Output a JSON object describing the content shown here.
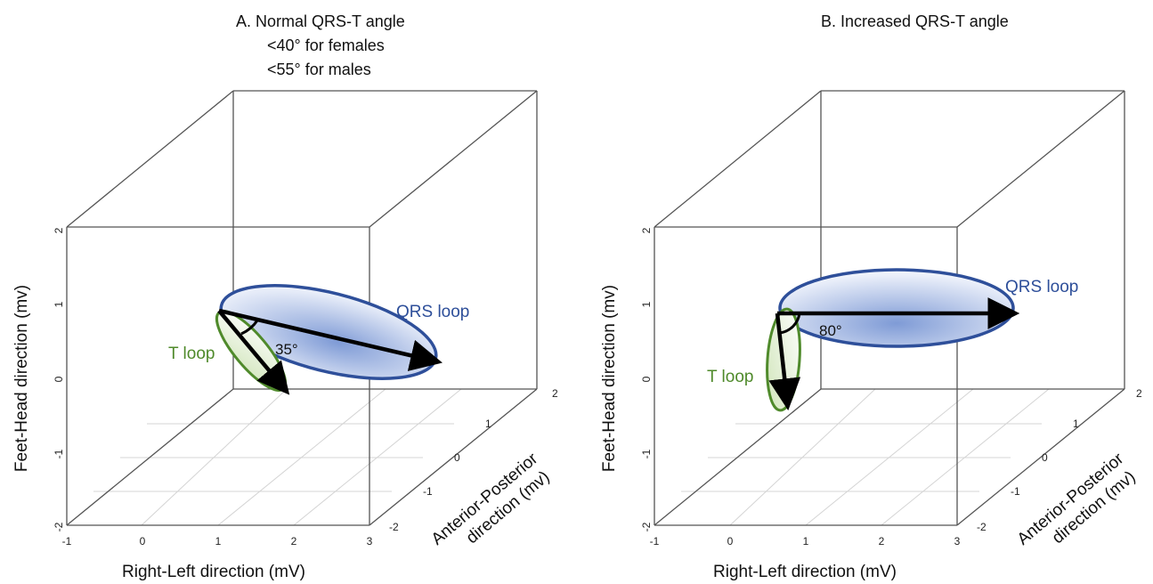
{
  "panels": [
    {
      "title_lines": [
        "A.  Normal QRS-T angle",
        "<40° for females",
        "<55° for males"
      ],
      "qrs_label": "QRS loop",
      "t_label": "T loop",
      "angle_label": "35°"
    },
    {
      "title_lines": [
        "B. Increased QRS-T angle"
      ],
      "qrs_label": "QRS loop",
      "t_label": "T loop",
      "angle_label": "80°"
    }
  ],
  "axes": {
    "x_label": "Right-Left direction (mV)",
    "y_label": "Anterior-Posterior direction (mv)",
    "z_label": "Feet-Head direction (mv)",
    "x_ticks": [
      "-1",
      "0",
      "1",
      "2",
      "3"
    ],
    "y_ticks": [
      "-2",
      "-1",
      "0",
      "1",
      "2"
    ],
    "z_ticks": [
      "-2",
      "-1",
      "0",
      "1",
      "2"
    ]
  },
  "colors": {
    "qrs_stroke": "#2e4f9a",
    "qrs_fill_light": "#eef2fb",
    "qrs_fill_dark": "#7f9bd6",
    "t_stroke": "#4f8a2b",
    "t_fill": "#e8f2dc",
    "arrow": "#000000",
    "qrs_text": "#2e4f9a",
    "t_text": "#4f8a2b"
  }
}
